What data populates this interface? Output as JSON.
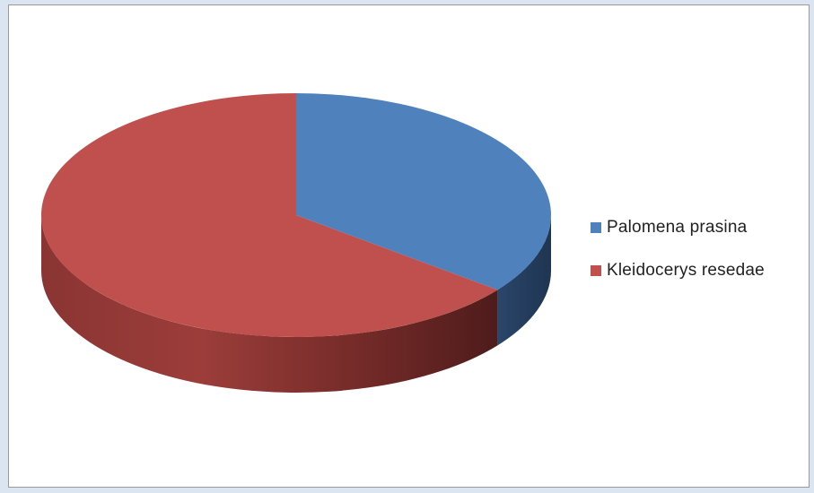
{
  "chart_data": {
    "type": "pie",
    "style": "3d",
    "title": "",
    "series": [
      {
        "name": "Palomena prasina",
        "value": 35.5,
        "color": "#4f81bd",
        "side_color": "#2c4d74"
      },
      {
        "name": "Kleidocerys resedae",
        "value": 64.5,
        "color": "#c0504d",
        "side_color": "#7f2d2b"
      }
    ],
    "legend_position": "right"
  }
}
